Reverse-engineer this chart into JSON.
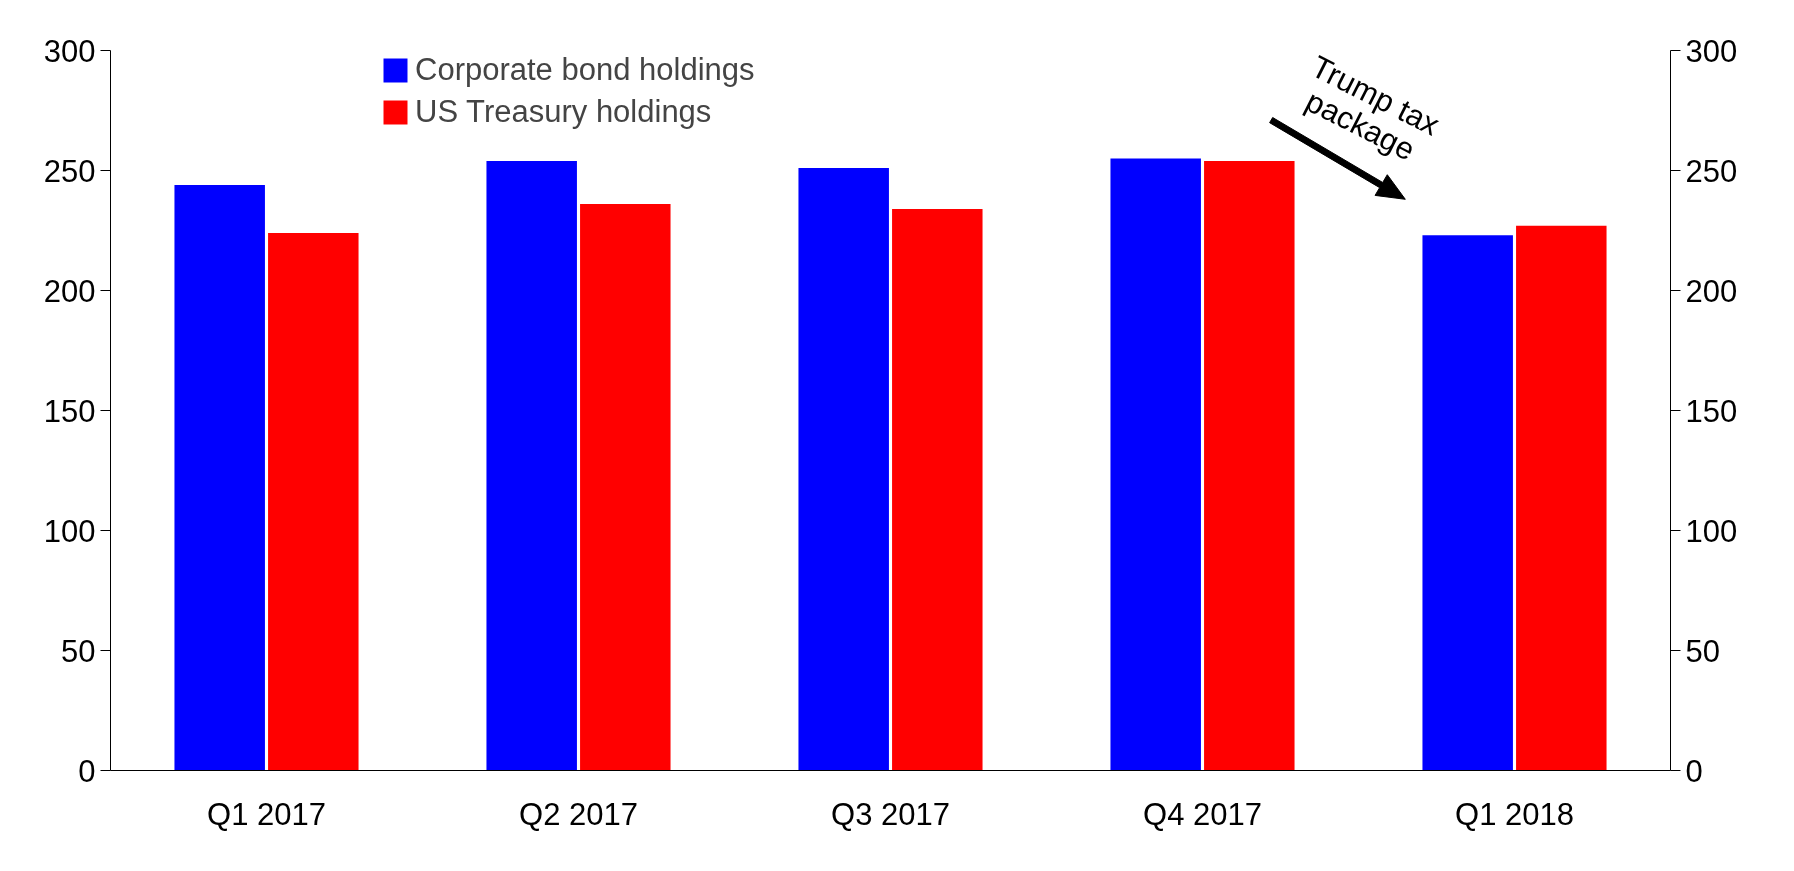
{
  "chart_data": {
    "type": "bar",
    "categories": [
      "Q1 2017",
      "Q2 2017",
      "Q3 2017",
      "Q4 2017",
      "Q1 2018"
    ],
    "series": [
      {
        "name": "Corporate bond holdings",
        "color": "#0000ff",
        "values": [
          244,
          254,
          251,
          255,
          223
        ]
      },
      {
        "name": "US Treasury holdings",
        "color": "#ff0000",
        "values": [
          224,
          236,
          234,
          254,
          227
        ]
      }
    ],
    "ylim": [
      0,
      300
    ],
    "yticks": [
      0,
      50,
      100,
      150,
      200,
      250,
      300
    ],
    "y2lim": [
      0,
      300
    ],
    "y2ticks": [
      0,
      50,
      100,
      150,
      200,
      250,
      300
    ],
    "annotations": [
      "Trump tax\npackage"
    ],
    "legend": "top",
    "grid": false
  }
}
